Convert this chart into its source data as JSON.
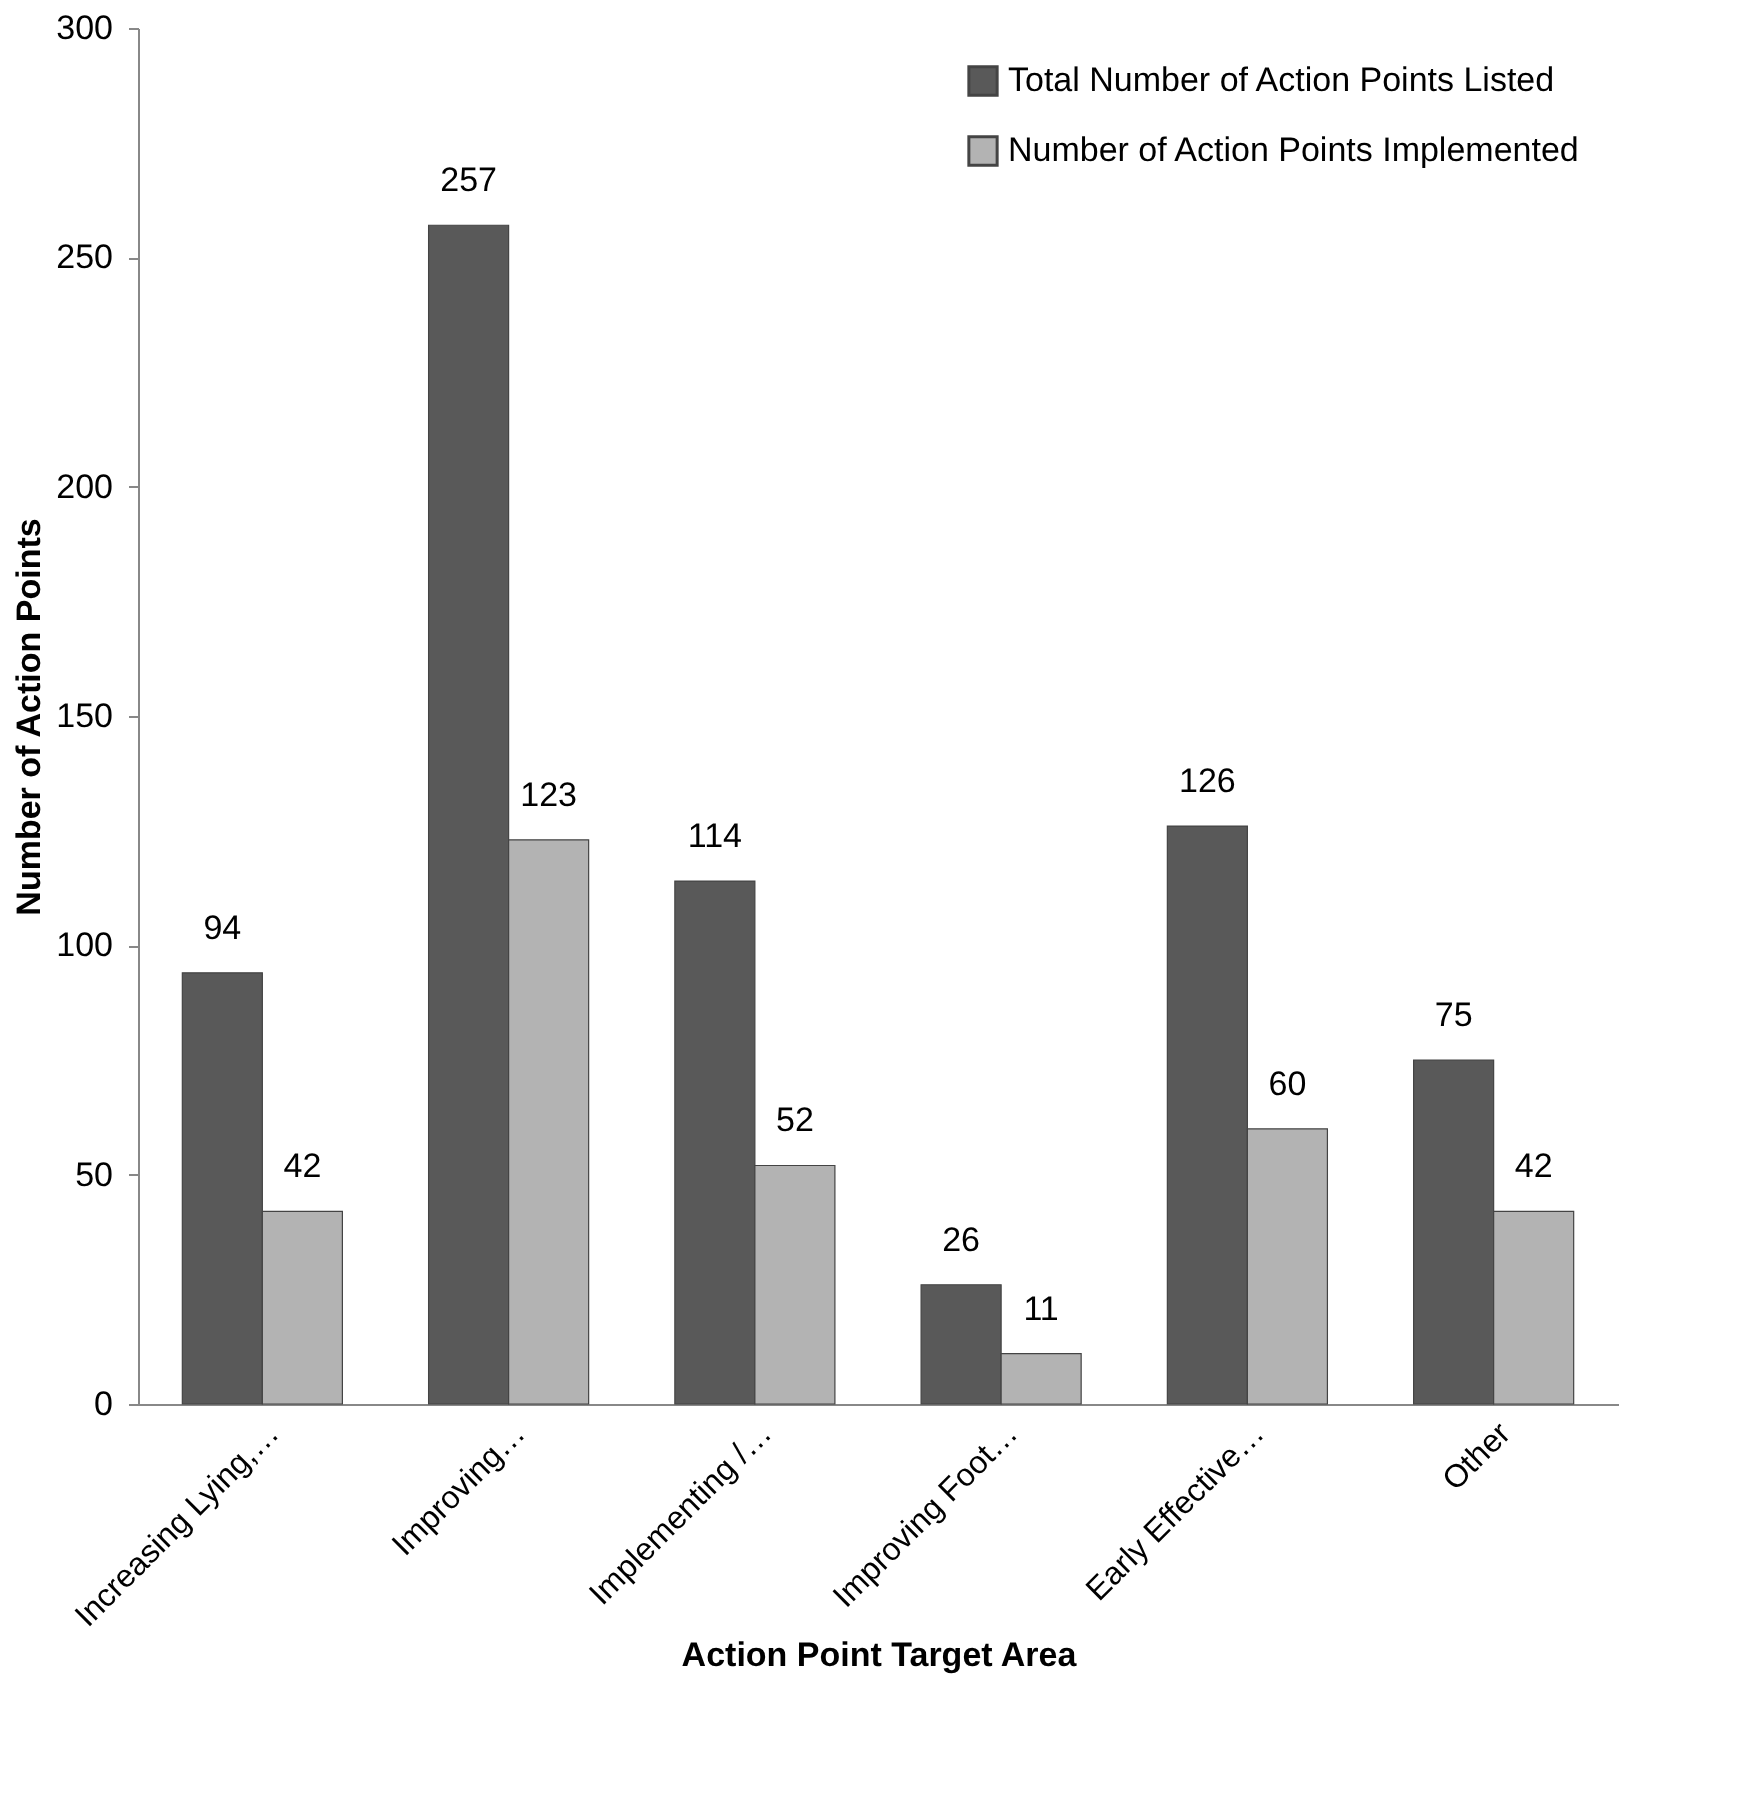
{
  "chart_data": {
    "type": "bar",
    "xlabel": "Action Point Target Area",
    "ylabel": "Number of Action Points",
    "categories": [
      "Increasing Lying,…",
      "Improving…",
      "Implementing /…",
      "Improving Foot…",
      "Early Effective…",
      "Other"
    ],
    "series": [
      {
        "name": "Total Number of Action Points Listed",
        "color": "#595959",
        "values": [
          94,
          257,
          114,
          26,
          126,
          75
        ]
      },
      {
        "name": "Number of Action Points Implemented",
        "color": "#b3b3b3",
        "values": [
          42,
          123,
          52,
          11,
          60,
          42
        ]
      }
    ],
    "ylim": [
      0,
      300
    ],
    "yticks": [
      0,
      50,
      100,
      150,
      200,
      250,
      300
    ],
    "grid": false,
    "legend": "top right",
    "data_labels": true
  }
}
